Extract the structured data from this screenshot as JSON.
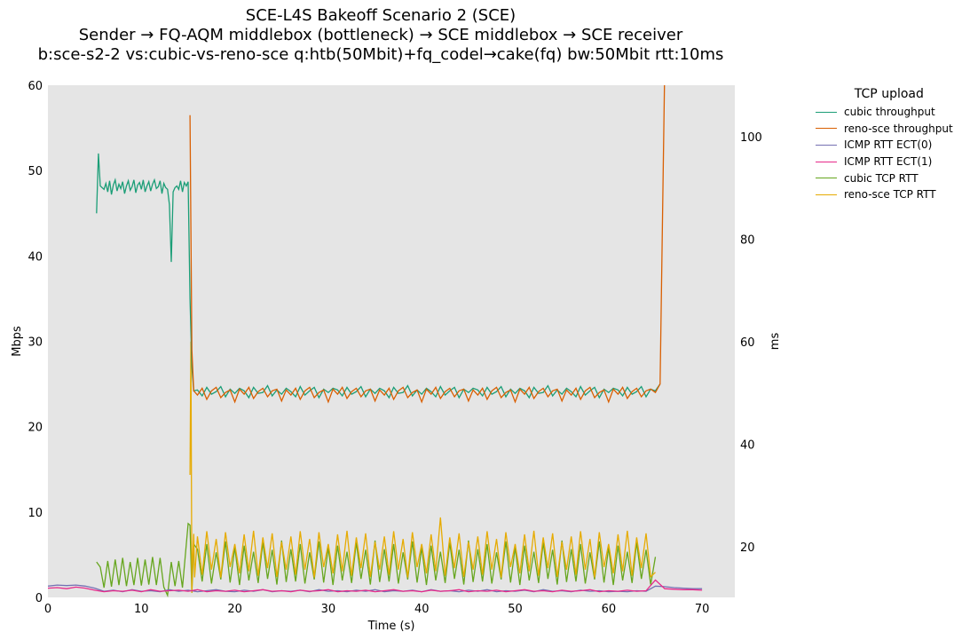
{
  "chart_data": {
    "type": "line",
    "title": [
      "SCE-L4S Bakeoff Scenario 2 (SCE)",
      "Sender → FQ-AQM middlebox (bottleneck) → SCE middlebox → SCE receiver",
      "b:sce-s2-2 vs:cubic-vs-reno-sce q:htb(50Mbit)+fq_codel→cake(fq) bw:50Mbit rtt:10ms"
    ],
    "xlabel": "Time (s)",
    "ylabel": "Mbps",
    "y2label": "ms",
    "xlim": [
      0,
      73.5
    ],
    "ylim": [
      0,
      60
    ],
    "y2lim": [
      10.1,
      110
    ],
    "xticks": [
      0,
      10,
      20,
      30,
      40,
      50,
      60,
      70
    ],
    "yticks": [
      0,
      10,
      20,
      30,
      40,
      50,
      60
    ],
    "y2ticks": [
      20,
      40,
      60,
      80,
      100
    ],
    "background": "#e5e5e5",
    "grid": false,
    "legend": {
      "title": "TCP upload",
      "placement": "outside-right"
    },
    "series": [
      {
        "name": "cubic throughput",
        "axis": "left",
        "color": "#1b9e77",
        "segments": [
          {
            "t0": 5.2,
            "dt": 0.2,
            "values": [
              45,
              52,
              48.2,
              48,
              47.8,
              48.5,
              47.5,
              48.8,
              47.2,
              48.3,
              48.9,
              47.6,
              48.4,
              47.9,
              48.7,
              47.3,
              48.2,
              48.8,
              47.7,
              48.1,
              48.9,
              47.4,
              48.3,
              48.6,
              47.8,
              48.9,
              47.5,
              48.2,
              48.7,
              47.6,
              48.4,
              48.9,
              47.9,
              48.1,
              48.8,
              47.3,
              48.5,
              48,
              47.8,
              46,
              39.3,
              47.5,
              48,
              48.2,
              47.8,
              48.8,
              47.5,
              48.6,
              48.2,
              48.7,
              35,
              27,
              24.2
            ]
          },
          {
            "t0": 16,
            "dt": 0.5,
            "values": [
              24.3,
              23.6,
              24.6,
              23.8,
              24.1,
              24.7,
              23.5,
              24.4,
              23.9,
              24.5,
              24.2,
              23.4,
              24.6,
              23.9,
              24.0,
              24.8,
              23.6,
              24.3,
              23.8,
              24.5,
              24.1,
              23.5,
              24.7,
              23.7,
              24.2,
              24.6,
              23.4,
              24.4,
              24.0,
              24.5,
              24.3,
              23.6,
              24.6,
              23.8,
              24.1,
              24.7,
              23.5,
              24.4,
              23.9,
              24.5,
              24.2,
              23.4,
              24.6,
              23.9,
              24.0,
              24.8,
              23.6,
              24.3,
              23.8,
              24.5,
              24.1,
              23.5,
              24.7,
              23.7,
              24.2,
              24.6,
              23.4,
              24.4,
              24.0,
              24.5,
              24.3,
              23.6,
              24.6,
              23.8,
              24.1,
              24.7,
              23.5,
              24.4,
              23.9,
              24.5,
              24.2,
              23.4,
              24.6,
              23.9,
              24.0,
              24.8,
              23.6,
              24.3,
              23.8,
              24.5,
              24.1,
              23.5,
              24.7,
              23.7,
              24.2,
              24.6,
              23.4,
              24.4,
              24.0,
              24.5,
              24.3,
              23.6,
              24.6,
              23.8,
              24.1,
              24.7,
              23.5,
              24.4,
              24.2,
              25.0
            ]
          }
        ]
      },
      {
        "name": "reno-sce throughput",
        "axis": "left",
        "color": "#d95f02",
        "segments": [
          {
            "t0": 15.2,
            "dt": 0.2,
            "values": [
              56.5,
              29,
              24.2
            ]
          },
          {
            "t0": 16,
            "dt": 0.5,
            "values": [
              23.7,
              24.5,
              23.2,
              24.2,
              24.6,
              23.4,
              24.0,
              24.3,
              22.9,
              24.4,
              23.8,
              24.6,
              23.3,
              24.1,
              24.5,
              23.5,
              24.2,
              24.4,
              23.0,
              24.3,
              23.7,
              24.5,
              23.2,
              24.2,
              24.6,
              23.4,
              24.0,
              24.3,
              22.9,
              24.4,
              23.8,
              24.6,
              23.3,
              24.1,
              24.5,
              23.5,
              24.2,
              24.4,
              23.0,
              24.3,
              23.7,
              24.5,
              23.2,
              24.2,
              24.6,
              23.4,
              24.0,
              24.3,
              22.9,
              24.4,
              23.8,
              24.6,
              23.3,
              24.1,
              24.5,
              23.5,
              24.2,
              24.4,
              23.0,
              24.3,
              23.7,
              24.5,
              23.2,
              24.2,
              24.6,
              23.4,
              24.0,
              24.3,
              22.9,
              24.4,
              23.8,
              24.6,
              23.3,
              24.1,
              24.5,
              23.5,
              24.2,
              24.4,
              23.0,
              24.3,
              23.7,
              24.5,
              23.2,
              24.2,
              24.6,
              23.4,
              24.0,
              24.3,
              22.9,
              24.4,
              23.8,
              24.6,
              23.3,
              24.1,
              24.5,
              23.5,
              24.2,
              24.4,
              24.0,
              25.0,
              62
            ]
          }
        ]
      },
      {
        "name": "ICMP RTT ECT(0)",
        "axis": "right",
        "color": "#7570b3",
        "segments": [
          {
            "t0": 0,
            "dt": 1,
            "values": [
              12.3,
              12.5,
              12.4,
              12.5,
              12.3,
              11.9,
              11.3,
              11.5,
              11.2,
              11.6,
              11.3,
              11.4,
              11.2,
              11.6,
              11.3,
              11.5,
              11.2,
              11.4,
              11.6,
              11.3,
              11.2,
              11.5,
              11.3,
              11.6,
              11.2,
              11.4,
              11.3,
              11.5,
              11.2,
              11.6,
              11.3,
              11.4,
              11.2,
              11.5,
              11.3,
              11.6,
              11.2,
              11.4,
              11.3,
              11.5,
              11.2,
              11.6,
              11.3,
              11.4,
              11.2,
              11.5,
              11.3,
              11.6,
              11.2,
              11.4,
              11.3,
              11.5,
              11.2,
              11.6,
              11.3,
              11.4,
              11.2,
              11.5,
              11.3,
              11.4,
              11.2,
              11.3,
              11.2,
              11.4,
              11.3,
              12.3,
              12.2,
              12.0,
              11.9,
              11.8,
              11.8
            ]
          }
        ]
      },
      {
        "name": "ICMP RTT ECT(1)",
        "axis": "right",
        "color": "#e7298a",
        "segments": [
          {
            "t0": 0,
            "dt": 1,
            "values": [
              11.9,
              12.0,
              11.8,
              12.1,
              11.9,
              11.5,
              11.2,
              11.4,
              11.3,
              11.5,
              11.2,
              11.6,
              11.3,
              11.4,
              11.5,
              11.3,
              11.6,
              11.2,
              11.4,
              11.3,
              11.5,
              11.2,
              11.4,
              11.6,
              11.3,
              11.4,
              11.2,
              11.5,
              11.3,
              11.4,
              11.6,
              11.2,
              11.4,
              11.3,
              11.5,
              11.2,
              11.4,
              11.6,
              11.3,
              11.4,
              11.2,
              11.5,
              11.3,
              11.4,
              11.6,
              11.2,
              11.4,
              11.3,
              11.5,
              11.2,
              11.4,
              11.6,
              11.3,
              11.4,
              11.2,
              11.5,
              11.3,
              11.4,
              11.6,
              11.2,
              11.4,
              11.3,
              11.5,
              11.3,
              11.4,
              13.5,
              11.8,
              11.7,
              11.6,
              11.6,
              11.5
            ]
          }
        ]
      },
      {
        "name": "cubic TCP RTT",
        "axis": "right",
        "color": "#66a61e",
        "segments": [
          {
            "t0": 5.2,
            "dt": 0.4,
            "values": [
              17,
              16,
              12,
              17.2,
              12.2,
              17.5,
              12.5,
              17.8,
              12.3,
              17,
              12.5,
              17.8,
              12.4,
              17.5,
              12.6,
              18,
              12.5,
              17.8,
              12.1,
              10.5,
              17,
              12.3,
              17.2,
              12
            ]
          },
          {
            "t0": 15.0,
            "dt": 0.2,
            "values": [
              24.5,
              24.2,
              11,
              20.5
            ]
          },
          {
            "t0": 16,
            "dt": 0.5,
            "values": [
              19.5,
              13.2,
              20.5,
              12.8,
              18.9,
              13.6,
              21.0,
              13.0,
              19.8,
              12.5,
              20.2,
              13.4,
              19.0,
              12.9,
              20.8,
              13.7,
              19.4,
              12.6,
              21.2,
              13.1,
              19.5,
              13.2,
              20.5,
              12.8,
              18.9,
              13.6,
              21.0,
              13.0,
              19.8,
              12.5,
              20.2,
              13.4,
              19.0,
              12.9,
              20.8,
              13.7,
              19.4,
              12.6,
              21.2,
              13.1,
              19.5,
              13.2,
              20.5,
              12.8,
              18.9,
              13.6,
              21.0,
              13.0,
              19.8,
              12.5,
              20.2,
              13.4,
              19.0,
              12.9,
              20.8,
              13.7,
              19.4,
              12.6,
              21.2,
              13.1,
              19.5,
              13.2,
              20.5,
              12.8,
              18.9,
              13.6,
              21.0,
              13.0,
              19.8,
              12.5,
              20.2,
              13.4,
              19.0,
              12.9,
              20.8,
              13.7,
              19.4,
              12.6,
              21.2,
              13.1,
              19.5,
              13.2,
              20.5,
              12.8,
              18.9,
              13.6,
              21.0,
              13.0,
              19.8,
              12.5,
              20.2,
              13.4,
              19.0,
              12.9,
              20.8,
              13.7,
              19.4,
              12.6,
              18.0
            ]
          }
        ]
      },
      {
        "name": "reno-sce TCP RTT",
        "axis": "right",
        "color": "#e6ab02",
        "segments": [
          {
            "t0": 15.2,
            "dt": 0.1,
            "values": [
              34,
              60,
              11,
              18,
              22.5,
              14
            ]
          },
          {
            "t0": 16,
            "dt": 0.5,
            "values": [
              22.0,
              14.5,
              23.0,
              15.5,
              21.5,
              14.0,
              22.8,
              16.0,
              20.5,
              14.8,
              22.4,
              15.2,
              23.1,
              14.3,
              21.8,
              15.8,
              22.6,
              14.1,
              20.9,
              15.5,
              22.0,
              14.5,
              23.0,
              15.5,
              21.5,
              14.0,
              22.8,
              16.0,
              20.5,
              14.8,
              22.4,
              15.2,
              23.1,
              14.3,
              21.8,
              15.8,
              22.6,
              14.1,
              20.9,
              15.5,
              22.0,
              14.5,
              23.0,
              15.5,
              21.5,
              14.0,
              22.8,
              16.0,
              20.5,
              14.8,
              22.4,
              15.2,
              25.7,
              14.3,
              21.8,
              15.8,
              22.6,
              14.1,
              20.9,
              15.5,
              22.0,
              14.5,
              23.0,
              15.5,
              21.5,
              14.0,
              22.8,
              16.0,
              20.5,
              14.8,
              22.4,
              15.2,
              23.1,
              14.3,
              21.8,
              15.8,
              22.6,
              14.1,
              20.9,
              15.5,
              22.0,
              14.5,
              23.0,
              15.5,
              21.5,
              14.0,
              22.8,
              16.0,
              20.5,
              14.8,
              22.4,
              15.2,
              23.1,
              14.3,
              21.8,
              15.8,
              22.6,
              14.1,
              15.0
            ]
          }
        ]
      }
    ]
  }
}
